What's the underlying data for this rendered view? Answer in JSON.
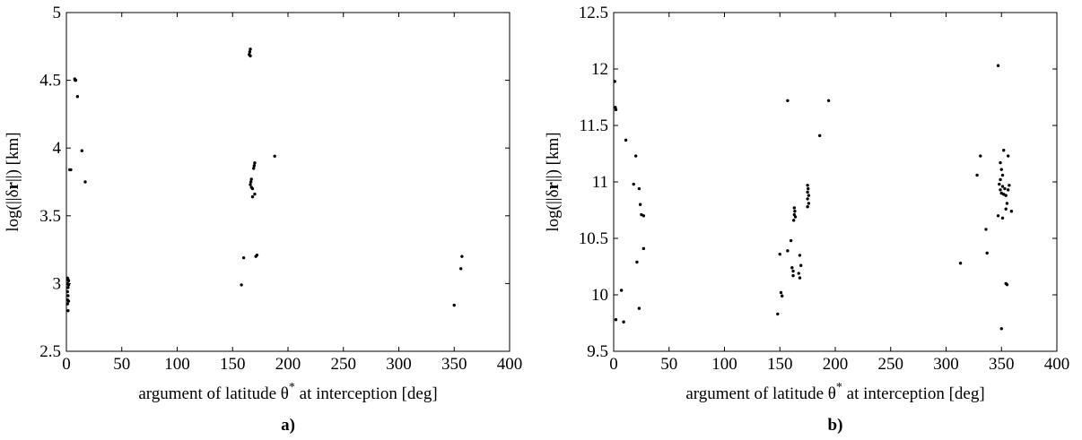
{
  "chart_data": [
    {
      "type": "scatter",
      "panel_label": "a)",
      "xlabel": {
        "pre": "argument of latitude θ",
        "sup": "*",
        "post": " at interception [deg]"
      },
      "ylabel": {
        "pre": "log(||δ",
        "bold": "r",
        "post": "||) [km]"
      },
      "xlim": [
        0,
        400
      ],
      "ylim": [
        2.5,
        5
      ],
      "xticks": [
        0,
        50,
        100,
        150,
        200,
        250,
        300,
        350,
        400
      ],
      "yticks": [
        2.5,
        3,
        3.5,
        4,
        4.5,
        5
      ],
      "ytick_labels": [
        "2.5",
        "3",
        "3.5",
        "4",
        "4.5",
        "5"
      ],
      "grid": false,
      "marker_color": "#000000",
      "points": [
        [
          7.5,
          4.51
        ],
        [
          8.0,
          4.5
        ],
        [
          8.5,
          4.5
        ],
        [
          10.0,
          4.38
        ],
        [
          14.0,
          3.98
        ],
        [
          17.0,
          3.75
        ],
        [
          3.0,
          3.84
        ],
        [
          4.0,
          3.84
        ],
        [
          1.0,
          3.04
        ],
        [
          1.5,
          3.03
        ],
        [
          2.0,
          3.02
        ],
        [
          1.0,
          3.0
        ],
        [
          2.0,
          2.99
        ],
        [
          1.5,
          2.97
        ],
        [
          1.0,
          2.94
        ],
        [
          1.5,
          2.91
        ],
        [
          1.0,
          2.88
        ],
        [
          2.0,
          2.87
        ],
        [
          1.0,
          2.85
        ],
        [
          1.5,
          2.8
        ],
        [
          166.0,
          4.73
        ],
        [
          165.5,
          4.71
        ],
        [
          165.0,
          4.69
        ],
        [
          166.0,
          4.68
        ],
        [
          170.0,
          3.89
        ],
        [
          169.5,
          3.87
        ],
        [
          169.0,
          3.85
        ],
        [
          167.0,
          3.77
        ],
        [
          166.5,
          3.75
        ],
        [
          166.0,
          3.73
        ],
        [
          167.0,
          3.71
        ],
        [
          168.0,
          3.7
        ],
        [
          170.0,
          3.66
        ],
        [
          168.0,
          3.64
        ],
        [
          188.0,
          3.94
        ],
        [
          160.0,
          3.19
        ],
        [
          172.0,
          3.21
        ],
        [
          171.0,
          3.2
        ],
        [
          158.0,
          2.99
        ],
        [
          357.0,
          3.2
        ],
        [
          356.0,
          3.11
        ],
        [
          350.0,
          2.84
        ]
      ]
    },
    {
      "type": "scatter",
      "panel_label": "b)",
      "xlabel": {
        "pre": "argument of latitude θ",
        "sup": "*",
        "post": " at interception [deg]"
      },
      "ylabel": {
        "pre": "log(||δ",
        "bold": "r",
        "post": "||) [km]"
      },
      "xlim": [
        0,
        400
      ],
      "ylim": [
        9.5,
        12.5
      ],
      "xticks": [
        0,
        50,
        100,
        150,
        200,
        250,
        300,
        350,
        400
      ],
      "yticks": [
        9.5,
        10,
        10.5,
        11,
        11.5,
        12,
        12.5
      ],
      "ytick_labels": [
        "9.5",
        "10",
        "10.5",
        "11",
        "11.5",
        "12",
        "12.5"
      ],
      "grid": false,
      "marker_color": "#000000",
      "points": [
        [
          1.0,
          11.89
        ],
        [
          1.5,
          11.66
        ],
        [
          2.0,
          11.64
        ],
        [
          11.0,
          11.37
        ],
        [
          18.0,
          10.98
        ],
        [
          20.0,
          11.23
        ],
        [
          23.0,
          10.94
        ],
        [
          24.0,
          10.8
        ],
        [
          25.0,
          10.71
        ],
        [
          27.0,
          10.7
        ],
        [
          27.0,
          10.41
        ],
        [
          21.0,
          10.29
        ],
        [
          23.0,
          9.88
        ],
        [
          7.0,
          10.04
        ],
        [
          2.0,
          9.78
        ],
        [
          9.0,
          9.76
        ],
        [
          157.0,
          11.72
        ],
        [
          186.0,
          11.41
        ],
        [
          194.0,
          11.72
        ],
        [
          150.0,
          10.36
        ],
        [
          151.0,
          10.02
        ],
        [
          152.0,
          9.99
        ],
        [
          148.0,
          9.83
        ],
        [
          157.0,
          10.39
        ],
        [
          160.0,
          10.48
        ],
        [
          163.0,
          10.77
        ],
        [
          163.5,
          10.74
        ],
        [
          163.0,
          10.71
        ],
        [
          164.0,
          10.69
        ],
        [
          162.5,
          10.66
        ],
        [
          161.0,
          10.24
        ],
        [
          162.0,
          10.21
        ],
        [
          162.0,
          10.17
        ],
        [
          168.0,
          10.35
        ],
        [
          169.0,
          10.26
        ],
        [
          167.0,
          10.19
        ],
        [
          168.0,
          10.15
        ],
        [
          175.0,
          10.97
        ],
        [
          175.5,
          10.94
        ],
        [
          175.0,
          10.91
        ],
        [
          176.0,
          10.88
        ],
        [
          175.0,
          10.85
        ],
        [
          176.0,
          10.81
        ],
        [
          175.0,
          10.78
        ],
        [
          313.0,
          10.28
        ],
        [
          328.0,
          11.06
        ],
        [
          331.0,
          11.23
        ],
        [
          336.0,
          10.58
        ],
        [
          337.0,
          10.37
        ],
        [
          347.0,
          12.03
        ],
        [
          352.0,
          11.28
        ],
        [
          356.0,
          11.23
        ],
        [
          349.0,
          11.17
        ],
        [
          350.0,
          11.11
        ],
        [
          351.0,
          11.06
        ],
        [
          349.0,
          11.02
        ],
        [
          348.0,
          10.98
        ],
        [
          351.0,
          10.96
        ],
        [
          353.0,
          10.94
        ],
        [
          349.0,
          10.93
        ],
        [
          350.0,
          10.9
        ],
        [
          352.0,
          10.89
        ],
        [
          354.0,
          10.88
        ],
        [
          357.0,
          10.97
        ],
        [
          356.0,
          10.93
        ],
        [
          355.0,
          10.81
        ],
        [
          359.0,
          10.74
        ],
        [
          354.0,
          10.76
        ],
        [
          347.0,
          10.7
        ],
        [
          351.0,
          10.68
        ],
        [
          354.0,
          10.1
        ],
        [
          355.0,
          10.09
        ],
        [
          350.0,
          9.7
        ]
      ]
    }
  ]
}
